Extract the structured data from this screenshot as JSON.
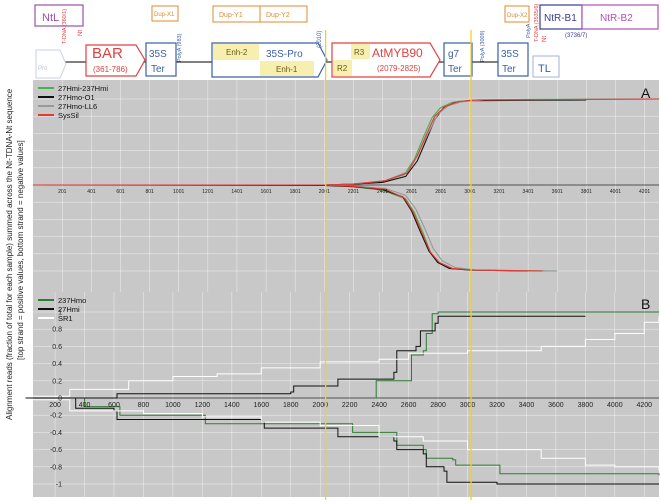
{
  "map": {
    "features": [
      {
        "id": "ntl",
        "label": "NtL",
        "color": "#9b4fa8",
        "kind": "box"
      },
      {
        "id": "pro-ghost",
        "label": "Pro",
        "sub": "2X35S",
        "color": "#9fb3d6",
        "kind": "faded"
      },
      {
        "id": "bar",
        "label": "BAR",
        "sub": "(361-786)",
        "color": "#e0413f",
        "kind": "arrow"
      },
      {
        "id": "ter1",
        "label": "35S",
        "sub": "Ter",
        "color": "#3a5fa8",
        "kind": "box"
      },
      {
        "id": "enh2",
        "label": "Enh-2",
        "color": "#d4b43a",
        "kind": "fill"
      },
      {
        "id": "pro35s",
        "label": "35S-Pro",
        "color": "#3a5fa8",
        "kind": "arrow"
      },
      {
        "id": "enh1",
        "label": "Enh-1",
        "color": "#d4b43a",
        "kind": "fill"
      },
      {
        "id": "r3",
        "label": "R3",
        "color": "#d4b43a",
        "kind": "fill"
      },
      {
        "id": "r2",
        "label": "R2",
        "color": "#d4b43a",
        "kind": "fill"
      },
      {
        "id": "atmyb90",
        "label": "AtMYB90",
        "sub": "(2079-2825)",
        "color": "#e0413f",
        "kind": "arrow"
      },
      {
        "id": "g7",
        "label": "g7",
        "sub": "Ter",
        "color": "#3a5fa8",
        "kind": "box"
      },
      {
        "id": "ter2",
        "label": "35S",
        "sub": "Ter",
        "color": "#3a5fa8",
        "kind": "box"
      },
      {
        "id": "tl",
        "label": "TL",
        "color": "#3a5fa8",
        "kind": "box"
      },
      {
        "id": "ntrb1",
        "label": "NtR-B1",
        "sub": "(3736/7)",
        "color": "#3a3a9a",
        "kind": "box"
      },
      {
        "id": "ntrb2",
        "label": "NtR-B2",
        "color": "#b050b8",
        "kind": "box"
      }
    ],
    "dups": [
      {
        "id": "dupx1",
        "label": "Dup-X1",
        "color": "#e08a2f"
      },
      {
        "id": "dupy1",
        "label": "Dup-Y1",
        "color": "#e08a2f"
      },
      {
        "id": "dupy2",
        "label": "Dup-Y2",
        "color": "#e08a2f"
      },
      {
        "id": "dupx2",
        "label": "Dup-X2",
        "color": "#e08a2f"
      }
    ],
    "vertical_labels": [
      {
        "id": "tdna-left",
        "text": "T-DNA (360/1)",
        "color": "#e0413f"
      },
      {
        "id": "nt-left",
        "text": "Nt",
        "color": "#e0413f"
      },
      {
        "id": "polya1",
        "text": "PolyA (983)",
        "color": "#3a5fa8"
      },
      {
        "id": "pos2010",
        "text": "(2010)",
        "color": "#3a5fa8"
      },
      {
        "id": "polya2",
        "text": "PolyA (3009)",
        "color": "#3a5fa8"
      },
      {
        "id": "polya3",
        "text": "PolyA",
        "color": "#3a5fa8"
      },
      {
        "id": "tdna-right",
        "text": "T-DNA (3535/6)",
        "color": "#e0413f"
      },
      {
        "id": "nt-right",
        "text": "Nt",
        "color": "#e0413f"
      }
    ]
  },
  "yaxis_label_line1": "Alignment reads (fraction of total for each sample) summed across the Nt-TDNA-Nt sequence",
  "yaxis_label_line2": "[top strand = positive values, bottom strand = negative values]",
  "chart_data": [
    {
      "type": "line",
      "panel": "A",
      "xlim": [
        0,
        4300
      ],
      "ylim": [
        -1.15,
        1.15
      ],
      "x_ticks": [
        201,
        401,
        601,
        801,
        1001,
        1201,
        1401,
        1601,
        1801,
        2001,
        2201,
        2401,
        2601,
        2801,
        3001,
        3201,
        3401,
        3601,
        3801,
        4001,
        4201
      ],
      "y_ticks": [],
      "grid": true,
      "legend_position": "top-left",
      "vertical_markers": [
        2010,
        3009
      ],
      "series": [
        {
          "name": "27Hmi-237Hmi",
          "color": "#4caf50",
          "top": [
            [
              0,
              0
            ],
            [
              2000,
              0
            ],
            [
              2200,
              0.01
            ],
            [
              2400,
              0.04
            ],
            [
              2550,
              0.12
            ],
            [
              2620,
              0.3
            ],
            [
              2680,
              0.55
            ],
            [
              2740,
              0.78
            ],
            [
              2800,
              0.9
            ],
            [
              2880,
              0.96
            ],
            [
              3000,
              0.985
            ],
            [
              3400,
              0.995
            ],
            [
              4300,
              1
            ]
          ],
          "bottom": [
            [
              0,
              0
            ],
            [
              2000,
              0
            ],
            [
              2200,
              -0.02
            ],
            [
              2400,
              -0.06
            ],
            [
              2560,
              -0.16
            ],
            [
              2620,
              -0.32
            ],
            [
              2680,
              -0.56
            ],
            [
              2730,
              -0.78
            ],
            [
              2780,
              -0.9
            ],
            [
              2860,
              -0.97
            ],
            [
              3000,
              -0.99
            ],
            [
              3600,
              -1
            ]
          ]
        },
        {
          "name": "27Hmo-O1",
          "color": "#111111",
          "top": [
            [
              0,
              0
            ],
            [
              2000,
              0
            ],
            [
              2200,
              0.01
            ],
            [
              2400,
              0.03
            ],
            [
              2560,
              0.1
            ],
            [
              2640,
              0.28
            ],
            [
              2700,
              0.52
            ],
            [
              2760,
              0.76
            ],
            [
              2820,
              0.9
            ],
            [
              2900,
              0.96
            ],
            [
              3000,
              0.98
            ],
            [
              3800,
              0.99
            ]
          ],
          "bottom": [
            [
              0,
              0
            ],
            [
              2000,
              -0.005
            ],
            [
              2200,
              -0.02
            ],
            [
              2400,
              -0.05
            ],
            [
              2540,
              -0.14
            ],
            [
              2600,
              -0.3
            ],
            [
              2660,
              -0.54
            ],
            [
              2720,
              -0.77
            ],
            [
              2780,
              -0.9
            ],
            [
              2860,
              -0.97
            ],
            [
              3000,
              -0.99
            ],
            [
              3400,
              -1
            ]
          ]
        },
        {
          "name": "27Hmo-LL6",
          "color": "#999999",
          "top": [
            [
              0,
              0
            ],
            [
              2000,
              0
            ],
            [
              2200,
              0.01
            ],
            [
              2420,
              0.05
            ],
            [
              2580,
              0.16
            ],
            [
              2650,
              0.38
            ],
            [
              2720,
              0.62
            ],
            [
              2780,
              0.82
            ],
            [
              2850,
              0.92
            ],
            [
              2950,
              0.97
            ],
            [
              3100,
              0.99
            ],
            [
              4300,
              1
            ]
          ],
          "bottom": [
            [
              0,
              0
            ],
            [
              2000,
              0
            ],
            [
              2200,
              -0.01
            ],
            [
              2420,
              -0.04
            ],
            [
              2560,
              -0.12
            ],
            [
              2630,
              -0.28
            ],
            [
              2690,
              -0.5
            ],
            [
              2750,
              -0.74
            ],
            [
              2810,
              -0.88
            ],
            [
              2900,
              -0.96
            ],
            [
              3050,
              -0.99
            ],
            [
              3600,
              -1
            ]
          ]
        },
        {
          "name": "SysSil",
          "color": "#e53935",
          "top": [
            [
              0,
              0
            ],
            [
              2000,
              0
            ],
            [
              2200,
              0.01
            ],
            [
              2420,
              0.05
            ],
            [
              2570,
              0.14
            ],
            [
              2640,
              0.34
            ],
            [
              2700,
              0.58
            ],
            [
              2760,
              0.8
            ],
            [
              2830,
              0.91
            ],
            [
              2920,
              0.97
            ],
            [
              3050,
              0.99
            ],
            [
              4300,
              1
            ]
          ],
          "bottom": [
            [
              0,
              0
            ],
            [
              2000,
              0
            ],
            [
              2200,
              -0.015
            ],
            [
              2420,
              -0.05
            ],
            [
              2550,
              -0.15
            ],
            [
              2610,
              -0.31
            ],
            [
              2670,
              -0.55
            ],
            [
              2730,
              -0.78
            ],
            [
              2790,
              -0.9
            ],
            [
              2880,
              -0.97
            ],
            [
              3020,
              -0.99
            ],
            [
              3500,
              -1
            ]
          ]
        }
      ]
    },
    {
      "type": "line",
      "panel": "B",
      "xlim": [
        50,
        4300
      ],
      "ylim": [
        -1.1,
        1.1
      ],
      "x_ticks": [
        200,
        400,
        600,
        800,
        1000,
        1200,
        1400,
        1600,
        1800,
        2000,
        2200,
        2400,
        2600,
        2800,
        3000,
        3200,
        3400,
        3600,
        3800,
        4000,
        4200
      ],
      "y_ticks": [
        1,
        0.8,
        0.6,
        0.4,
        0.2,
        0,
        -0.2,
        -0.4,
        -0.6,
        -0.8,
        -1
      ],
      "grid": true,
      "legend_position": "top-left",
      "vertical_markers": [
        2010,
        3009
      ],
      "series": [
        {
          "name": "237Hmo",
          "color": "#2e7d32",
          "top": [
            [
              2370,
              0
            ],
            [
              2380,
              0.2
            ],
            [
              2600,
              0.2
            ],
            [
              2620,
              0.5
            ],
            [
              2700,
              0.55
            ],
            [
              2720,
              0.75
            ],
            [
              2760,
              0.98
            ],
            [
              2800,
              1
            ],
            [
              4300,
              1
            ]
          ],
          "bottom": [
            [
              400,
              0
            ],
            [
              400,
              -0.1
            ],
            [
              620,
              -0.1
            ],
            [
              640,
              -0.2
            ],
            [
              1200,
              -0.2
            ],
            [
              1220,
              -0.3
            ],
            [
              2200,
              -0.3
            ],
            [
              2220,
              -0.4
            ],
            [
              2500,
              -0.4
            ],
            [
              2520,
              -0.55
            ],
            [
              2700,
              -0.6
            ],
            [
              2720,
              -0.7
            ],
            [
              2900,
              -0.72
            ],
            [
              2920,
              -0.78
            ],
            [
              3200,
              -0.78
            ],
            [
              3220,
              -0.88
            ],
            [
              4300,
              -0.9
            ]
          ]
        },
        {
          "name": "27Hmi",
          "color": "#111111",
          "top": [
            [
              0,
              0
            ],
            [
              600,
              0
            ],
            [
              620,
              0.05
            ],
            [
              1800,
              0.07
            ],
            [
              1820,
              0.14
            ],
            [
              2100,
              0.14
            ],
            [
              2120,
              0.22
            ],
            [
              2500,
              0.3
            ],
            [
              2520,
              0.55
            ],
            [
              2650,
              0.6
            ],
            [
              2680,
              0.78
            ],
            [
              2780,
              0.87
            ],
            [
              2800,
              0.95
            ],
            [
              3000,
              0.95
            ],
            [
              3800,
              0.95
            ]
          ],
          "bottom": [
            [
              0,
              0
            ],
            [
              320,
              0
            ],
            [
              340,
              -0.12
            ],
            [
              600,
              -0.15
            ],
            [
              620,
              -0.25
            ],
            [
              1600,
              -0.28
            ],
            [
              1620,
              -0.35
            ],
            [
              2100,
              -0.35
            ],
            [
              2120,
              -0.45
            ],
            [
              2500,
              -0.5
            ],
            [
              2520,
              -0.6
            ],
            [
              2700,
              -0.65
            ],
            [
              2720,
              -0.8
            ],
            [
              2840,
              -0.85
            ],
            [
              2860,
              -0.98
            ],
            [
              3200,
              -1
            ],
            [
              4300,
              -1
            ]
          ]
        },
        {
          "name": "SR1",
          "color": "#ffffff",
          "top": [
            [
              0,
              0.02
            ],
            [
              300,
              0.1
            ],
            [
              700,
              0.2
            ],
            [
              1000,
              0.25
            ],
            [
              1300,
              0.28
            ],
            [
              1600,
              0.35
            ],
            [
              2000,
              0.42
            ],
            [
              2400,
              0.45
            ],
            [
              2600,
              0.52
            ],
            [
              3000,
              0.55
            ],
            [
              3500,
              0.6
            ],
            [
              3800,
              0.68
            ],
            [
              4000,
              0.75
            ],
            [
              4200,
              0.88
            ],
            [
              4300,
              0.95
            ]
          ],
          "bottom": [
            [
              0,
              -0.02
            ],
            [
              300,
              -0.15
            ],
            [
              800,
              -0.18
            ],
            [
              1200,
              -0.22
            ],
            [
              1600,
              -0.28
            ],
            [
              2000,
              -0.32
            ],
            [
              2400,
              -0.45
            ],
            [
              2700,
              -0.5
            ],
            [
              3000,
              -0.6
            ],
            [
              3500,
              -0.7
            ],
            [
              3800,
              -0.78
            ],
            [
              4000,
              -0.8
            ],
            [
              4300,
              -0.85
            ]
          ]
        }
      ]
    }
  ]
}
